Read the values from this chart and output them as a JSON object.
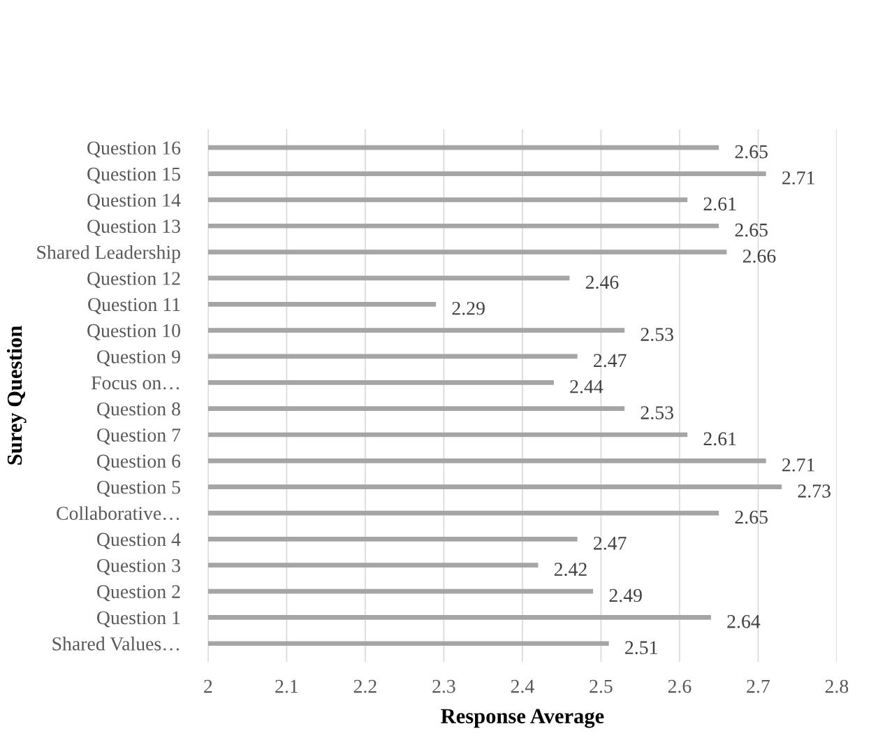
{
  "chart_data": {
    "type": "bar",
    "orientation": "horizontal",
    "categories": [
      "Question 16",
      "Question 15",
      "Question 14",
      "Question 13",
      "Shared Leadership",
      "Question 12",
      "Question 11",
      "Question 10",
      "Question 9",
      "Focus on…",
      "Question 8",
      "Question 7",
      "Question 6",
      "Question 5",
      "Collaborative…",
      "Question 4",
      "Question 3",
      "Question 2",
      "Question 1",
      "Shared Values…"
    ],
    "values": [
      2.65,
      2.71,
      2.61,
      2.65,
      2.66,
      2.46,
      2.29,
      2.53,
      2.47,
      2.44,
      2.53,
      2.61,
      2.71,
      2.73,
      2.65,
      2.47,
      2.42,
      2.49,
      2.64,
      2.51
    ],
    "color": "#a5a5a5",
    "xlim": [
      2,
      2.8
    ],
    "xticks": [
      2,
      2.1,
      2.2,
      2.3,
      2.4,
      2.5,
      2.6,
      2.7,
      2.8
    ],
    "xlabel": "Response Average",
    "ylabel": "Surey Question",
    "grid": "x",
    "data_labels": true
  }
}
